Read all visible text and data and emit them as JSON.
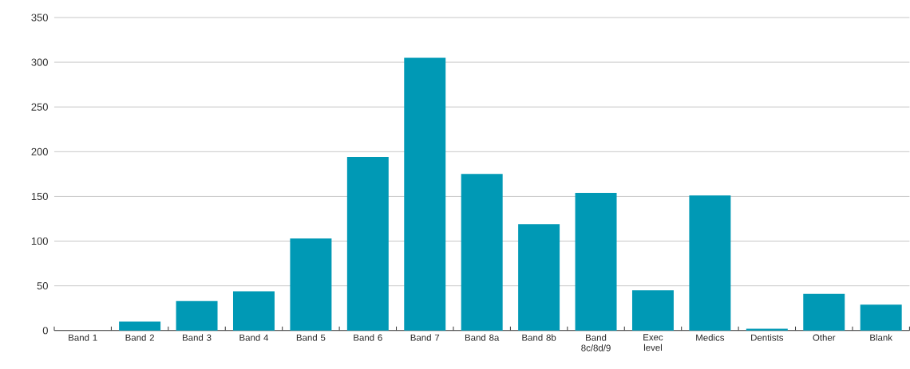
{
  "chart_data": {
    "type": "bar",
    "categories": [
      "Band 1",
      "Band 2",
      "Band 3",
      "Band 4",
      "Band 5",
      "Band 6",
      "Band 7",
      "Band 8a",
      "Band 8b",
      "Band 8c/8d/9",
      "Exec level",
      "Medics",
      "Dentists",
      "Other",
      "Blank"
    ],
    "values": [
      0,
      10,
      33,
      44,
      103,
      194,
      305,
      175,
      119,
      154,
      45,
      151,
      2,
      41,
      29
    ],
    "color": "#0099b5",
    "ylim": [
      0,
      350
    ],
    "yticks": [
      0,
      50,
      100,
      150,
      200,
      250,
      300,
      350
    ],
    "grid": "y"
  }
}
